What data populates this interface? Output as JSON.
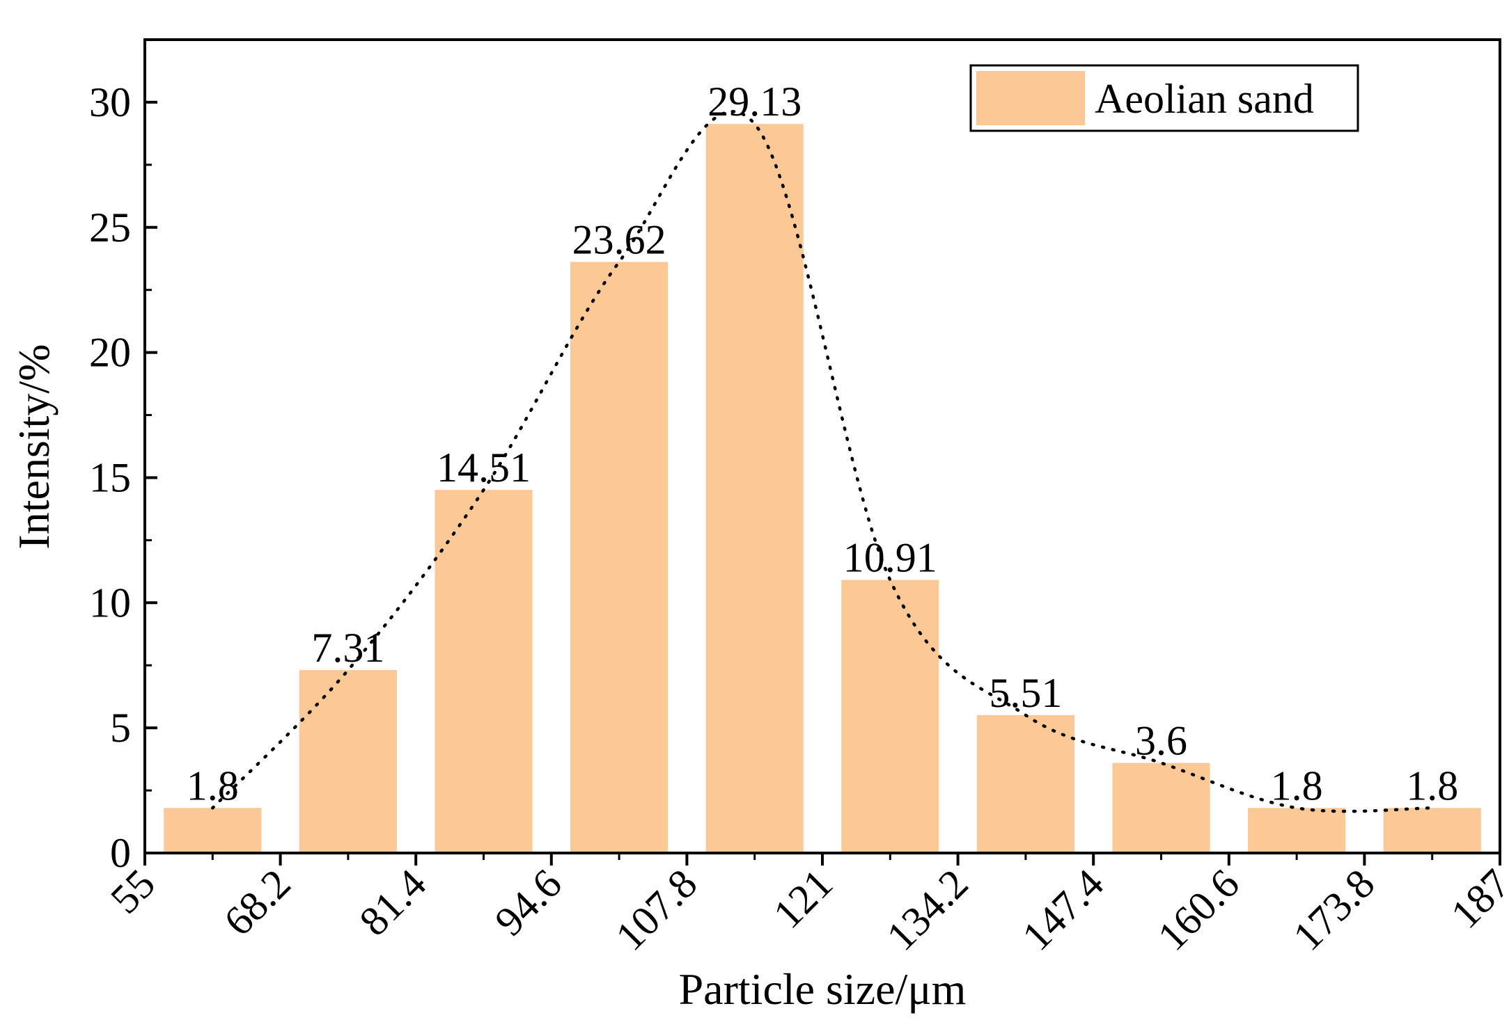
{
  "chart_data": {
    "type": "bar",
    "xlabel": "Particle size/μm",
    "ylabel": "Intensity/%",
    "x_ticks": [
      "55",
      "68.2",
      "81.4",
      "94.6",
      "107.8",
      "121",
      "134.2",
      "147.4",
      "160.6",
      "173.8",
      "187"
    ],
    "xlim": [
      55,
      187
    ],
    "ylim": [
      0,
      32.5
    ],
    "y_ticks": [
      "0",
      "5",
      "10",
      "15",
      "20",
      "25",
      "30"
    ],
    "series": [
      {
        "name": "Aeolian sand",
        "bins": [
          [
            55,
            68.2
          ],
          [
            68.2,
            81.4
          ],
          [
            81.4,
            94.6
          ],
          [
            94.6,
            107.8
          ],
          [
            107.8,
            121
          ],
          [
            121,
            134.2
          ],
          [
            134.2,
            147.4
          ],
          [
            147.4,
            160.6
          ],
          [
            160.6,
            173.8
          ],
          [
            173.8,
            187
          ]
        ],
        "values": [
          1.8,
          7.31,
          14.51,
          23.62,
          29.13,
          10.91,
          5.51,
          3.6,
          1.8,
          1.8
        ],
        "labels": [
          "1.8",
          "7.31",
          "14.51",
          "23.62",
          "29.13",
          "10.91",
          "5.51",
          "3.6",
          "1.8",
          "1.8"
        ]
      }
    ],
    "trend_line": "dotted smooth curve through bar tops",
    "legend": {
      "position": "top-right",
      "entries": [
        "Aeolian sand"
      ]
    },
    "grid": false,
    "colors": {
      "bar": "#FCC896",
      "axis": "#000000"
    }
  }
}
